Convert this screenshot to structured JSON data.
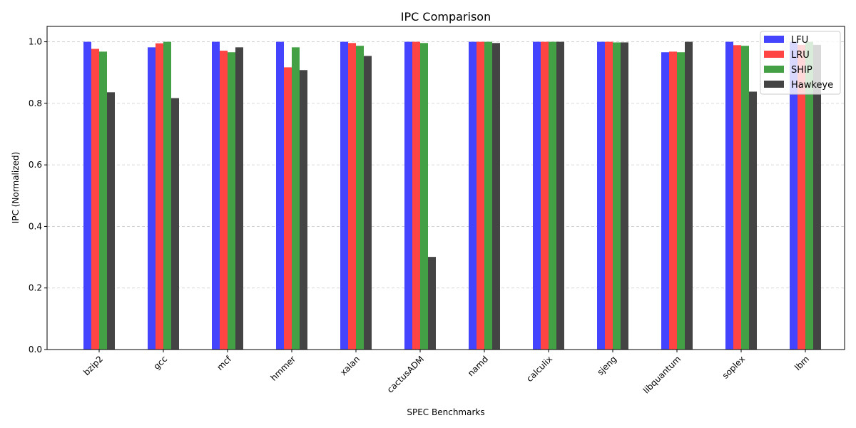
{
  "chart_data": {
    "type": "bar",
    "title": "IPC Comparison",
    "xlabel": "SPEC Benchmarks",
    "ylabel": "IPC (Normalized)",
    "ylim": [
      0,
      1.05
    ],
    "yticks": [
      "0.0",
      "0.2",
      "0.4",
      "0.6",
      "0.8",
      "1.0"
    ],
    "grid": "y-dashed",
    "legend_position": "top-right",
    "categories": [
      "bzip2",
      "gcc",
      "mcf",
      "hmmer",
      "xalan",
      "cactusADM",
      "namd",
      "calculix",
      "sjeng",
      "libquantum",
      "soplex",
      "lbm"
    ],
    "series": [
      {
        "name": "LFU",
        "color": "#4444ff",
        "values": [
          1.0,
          0.982,
          1.0,
          1.0,
          1.0,
          1.0,
          1.0,
          1.0,
          1.0,
          0.966,
          1.0,
          1.0
        ]
      },
      {
        "name": "LRU",
        "color": "#ff4444",
        "values": [
          0.977,
          0.995,
          0.971,
          0.917,
          0.996,
          1.0,
          1.0,
          1.0,
          1.0,
          0.968,
          0.989,
          0.99
        ]
      },
      {
        "name": "SHIP",
        "color": "#44a044",
        "values": [
          0.968,
          1.0,
          0.966,
          0.982,
          0.987,
          0.996,
          1.0,
          1.0,
          0.998,
          0.966,
          0.987,
          1.0
        ]
      },
      {
        "name": "Hawkeye",
        "color": "#444444",
        "values": [
          0.836,
          0.817,
          0.982,
          0.908,
          0.954,
          0.301,
          0.996,
          1.0,
          0.998,
          1.0,
          0.838,
          0.99
        ]
      }
    ]
  }
}
